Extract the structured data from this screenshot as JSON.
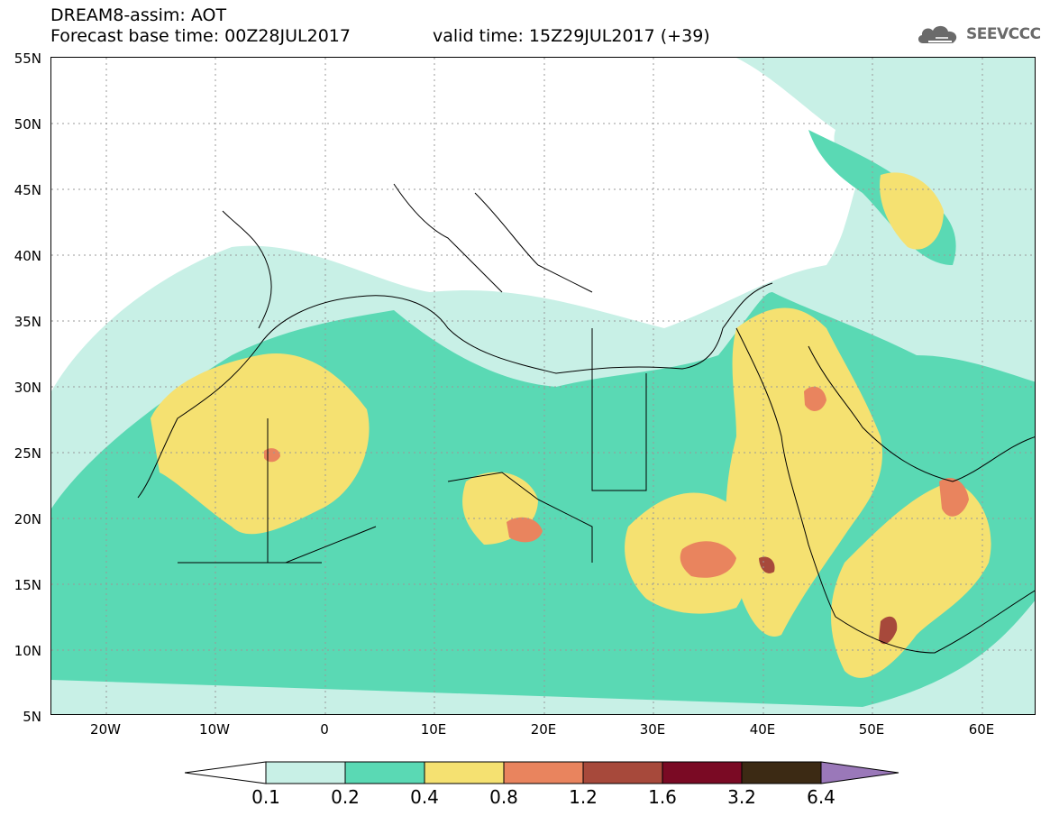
{
  "header": {
    "line1": "DREAM8-assim: AOT",
    "line2": "Forecast base time: 00Z28JUL2017",
    "line3": "valid time: 15Z29JUL2017 (+39)"
  },
  "logo": {
    "text": "SEEVCCC",
    "icon": "cloud-icon"
  },
  "map": {
    "lat_labels": [
      "55N",
      "50N",
      "45N",
      "40N",
      "35N",
      "30N",
      "25N",
      "20N",
      "15N",
      "10N",
      "5N"
    ],
    "lon_labels": [
      "20W",
      "10W",
      "0",
      "10E",
      "20E",
      "30E",
      "40E",
      "50E",
      "60E"
    ]
  },
  "colorbar": {
    "values": [
      "0.1",
      "0.2",
      "0.4",
      "0.8",
      "1.2",
      "1.6",
      "3.2",
      "6.4"
    ],
    "colors": [
      "#ffffff",
      "#c8f0e6",
      "#5ad9b4",
      "#f5e171",
      "#e9845e",
      "#a7493b",
      "#7a0a24",
      "#3c2a14",
      "#9a78b9"
    ]
  }
}
